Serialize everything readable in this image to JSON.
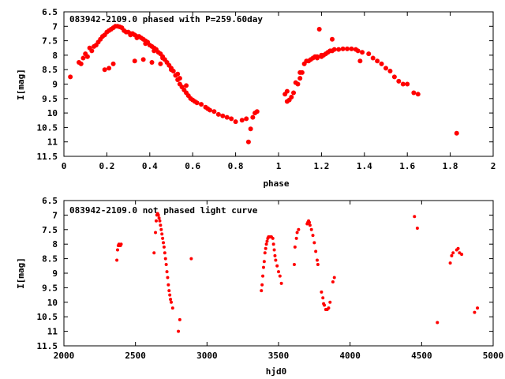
{
  "chart_data": [
    {
      "type": "scatter",
      "title": "083942-2109.0 phased with P=259.60day",
      "xlabel": "phase",
      "ylabel": "I[mag]",
      "xlim": [
        0,
        2
      ],
      "ylim": [
        6.5,
        11.5
      ],
      "y_inverted": true,
      "xticks": [
        "0",
        "0.2",
        "0.4",
        "0.6",
        "0.8",
        "1",
        "1.2",
        "1.4",
        "1.6",
        "1.8",
        "2"
      ],
      "yticks": [
        "6.5",
        "7",
        "7.5",
        "8",
        "8.5",
        "9",
        "9.5",
        "10",
        "10.5",
        "11",
        "11.5"
      ],
      "grid": false,
      "marker_color": "#ff0000",
      "series": [
        {
          "points": [
            [
              0.03,
              8.75
            ],
            [
              0.07,
              8.25
            ],
            [
              0.08,
              8.3
            ],
            [
              0.09,
              8.1
            ],
            [
              0.1,
              7.95
            ],
            [
              0.11,
              8.05
            ],
            [
              0.12,
              7.75
            ],
            [
              0.13,
              7.85
            ],
            [
              0.14,
              7.7
            ],
            [
              0.15,
              7.65
            ],
            [
              0.16,
              7.55
            ],
            [
              0.17,
              7.45
            ],
            [
              0.18,
              7.35
            ],
            [
              0.19,
              7.3
            ],
            [
              0.2,
              7.2
            ],
            [
              0.21,
              7.15
            ],
            [
              0.22,
              7.1
            ],
            [
              0.23,
              7.05
            ],
            [
              0.24,
              7.0
            ],
            [
              0.25,
              7.0
            ],
            [
              0.26,
              7.02
            ],
            [
              0.27,
              7.05
            ],
            [
              0.28,
              7.15
            ],
            [
              0.29,
              7.2
            ],
            [
              0.3,
              7.2
            ],
            [
              0.31,
              7.25
            ],
            [
              0.32,
              7.25
            ],
            [
              0.33,
              7.3
            ],
            [
              0.34,
              7.35
            ],
            [
              0.35,
              7.35
            ],
            [
              0.36,
              7.4
            ],
            [
              0.37,
              7.45
            ],
            [
              0.38,
              7.5
            ],
            [
              0.39,
              7.55
            ],
            [
              0.4,
              7.65
            ],
            [
              0.41,
              7.7
            ],
            [
              0.42,
              7.75
            ],
            [
              0.43,
              7.8
            ],
            [
              0.44,
              7.9
            ],
            [
              0.45,
              7.95
            ],
            [
              0.46,
              8.05
            ],
            [
              0.47,
              8.15
            ],
            [
              0.48,
              8.25
            ],
            [
              0.49,
              8.35
            ],
            [
              0.5,
              8.45
            ],
            [
              0.51,
              8.55
            ],
            [
              0.52,
              8.7
            ],
            [
              0.53,
              8.85
            ],
            [
              0.54,
              9.0
            ],
            [
              0.55,
              9.1
            ],
            [
              0.56,
              9.2
            ],
            [
              0.57,
              9.3
            ],
            [
              0.58,
              9.4
            ],
            [
              0.59,
              9.5
            ],
            [
              0.6,
              9.55
            ],
            [
              0.62,
              9.65
            ],
            [
              0.64,
              9.7
            ],
            [
              0.66,
              9.8
            ],
            [
              0.68,
              9.9
            ],
            [
              0.7,
              9.95
            ],
            [
              0.72,
              10.05
            ],
            [
              0.74,
              10.1
            ],
            [
              0.76,
              10.15
            ],
            [
              0.78,
              10.2
            ],
            [
              0.8,
              10.3
            ],
            [
              0.83,
              10.25
            ],
            [
              0.85,
              10.2
            ],
            [
              0.86,
              11.0
            ],
            [
              0.87,
              10.55
            ],
            [
              0.88,
              10.15
            ],
            [
              0.89,
              10.0
            ],
            [
              0.9,
              9.95
            ],
            [
              0.19,
              8.5
            ],
            [
              0.21,
              8.45
            ],
            [
              0.23,
              8.3
            ],
            [
              0.33,
              8.2
            ],
            [
              0.37,
              8.15
            ],
            [
              0.41,
              8.25
            ],
            [
              0.45,
              8.3
            ],
            [
              0.53,
              8.65
            ],
            [
              0.31,
              7.3
            ],
            [
              0.34,
              7.4
            ],
            [
              0.38,
              7.6
            ],
            [
              0.42,
              7.85
            ],
            [
              0.46,
              8.1
            ],
            [
              0.5,
              8.5
            ],
            [
              0.54,
              8.8
            ],
            [
              0.57,
              9.05
            ],
            [
              0.61,
              9.6
            ],
            [
              0.67,
              9.85
            ],
            [
              1.03,
              9.35
            ],
            [
              1.04,
              9.25
            ],
            [
              1.04,
              9.6
            ],
            [
              1.05,
              9.55
            ],
            [
              1.06,
              9.45
            ],
            [
              1.07,
              9.3
            ],
            [
              1.08,
              8.95
            ],
            [
              1.09,
              9.0
            ],
            [
              1.1,
              8.8
            ],
            [
              1.1,
              8.6
            ],
            [
              1.11,
              8.6
            ],
            [
              1.12,
              8.3
            ],
            [
              1.13,
              8.2
            ],
            [
              1.14,
              8.2
            ],
            [
              1.15,
              8.15
            ],
            [
              1.16,
              8.1
            ],
            [
              1.17,
              8.05
            ],
            [
              1.18,
              8.05
            ],
            [
              1.19,
              7.1
            ],
            [
              1.2,
              8.0
            ],
            [
              1.21,
              8.0
            ],
            [
              1.22,
              7.95
            ],
            [
              1.23,
              7.9
            ],
            [
              1.24,
              7.85
            ],
            [
              1.25,
              7.85
            ],
            [
              1.25,
              7.45
            ],
            [
              1.26,
              7.8
            ],
            [
              1.28,
              7.8
            ],
            [
              1.3,
              7.78
            ],
            [
              1.32,
              7.78
            ],
            [
              1.34,
              7.78
            ],
            [
              1.36,
              7.8
            ],
            [
              1.37,
              7.85
            ],
            [
              1.38,
              8.2
            ],
            [
              1.39,
              7.9
            ],
            [
              1.42,
              7.95
            ],
            [
              1.44,
              8.1
            ],
            [
              1.46,
              8.2
            ],
            [
              1.48,
              8.3
            ],
            [
              1.5,
              8.45
            ],
            [
              1.52,
              8.55
            ],
            [
              1.54,
              8.75
            ],
            [
              1.56,
              8.9
            ],
            [
              1.58,
              9.0
            ],
            [
              1.6,
              9.0
            ],
            [
              1.63,
              9.3
            ],
            [
              1.65,
              9.35
            ],
            [
              1.83,
              10.7
            ],
            [
              1.18,
              8.1
            ],
            [
              1.2,
              8.05
            ]
          ]
        }
      ]
    },
    {
      "type": "scatter",
      "title": "083942-2109.0 not phased light curve",
      "xlabel": "hjd0",
      "ylabel": "I[mag]",
      "xlim": [
        2000,
        5000
      ],
      "ylim": [
        6.5,
        11.5
      ],
      "y_inverted": true,
      "xticks": [
        "2000",
        "2500",
        "3000",
        "3500",
        "4000",
        "4500",
        "5000"
      ],
      "yticks": [
        "6.5",
        "7",
        "7.5",
        "8",
        "8.5",
        "9",
        "9.5",
        "10",
        "10.5",
        "11",
        "11.5"
      ],
      "grid": false,
      "marker_color": "#ff0000",
      "series": [
        {
          "points": [
            [
              2370,
              8.55
            ],
            [
              2375,
              8.2
            ],
            [
              2380,
              8.05
            ],
            [
              2385,
              8.0
            ],
            [
              2390,
              8.05
            ],
            [
              2395,
              8.05
            ],
            [
              2400,
              8.0
            ],
            [
              2630,
              8.3
            ],
            [
              2640,
              7.6
            ],
            [
              2645,
              7.2
            ],
            [
              2650,
              7.0
            ],
            [
              2655,
              6.95
            ],
            [
              2660,
              7.0
            ],
            [
              2665,
              7.1
            ],
            [
              2670,
              7.2
            ],
            [
              2675,
              7.35
            ],
            [
              2680,
              7.5
            ],
            [
              2685,
              7.65
            ],
            [
              2690,
              7.8
            ],
            [
              2695,
              7.95
            ],
            [
              2700,
              8.1
            ],
            [
              2705,
              8.3
            ],
            [
              2710,
              8.5
            ],
            [
              2715,
              8.7
            ],
            [
              2720,
              8.95
            ],
            [
              2725,
              9.15
            ],
            [
              2730,
              9.4
            ],
            [
              2735,
              9.6
            ],
            [
              2740,
              9.75
            ],
            [
              2745,
              9.9
            ],
            [
              2750,
              10.0
            ],
            [
              2760,
              10.2
            ],
            [
              2800,
              11.0
            ],
            [
              2810,
              10.6
            ],
            [
              2890,
              8.5
            ],
            [
              3380,
              9.6
            ],
            [
              3385,
              9.4
            ],
            [
              3390,
              9.1
            ],
            [
              3395,
              8.8
            ],
            [
              3400,
              8.6
            ],
            [
              3405,
              8.3
            ],
            [
              3410,
              8.15
            ],
            [
              3415,
              8.0
            ],
            [
              3420,
              7.9
            ],
            [
              3425,
              7.8
            ],
            [
              3430,
              7.75
            ],
            [
              3440,
              7.75
            ],
            [
              3450,
              7.75
            ],
            [
              3460,
              7.8
            ],
            [
              3465,
              8.0
            ],
            [
              3470,
              8.2
            ],
            [
              3475,
              8.4
            ],
            [
              3480,
              8.55
            ],
            [
              3490,
              8.75
            ],
            [
              3500,
              8.95
            ],
            [
              3510,
              9.1
            ],
            [
              3520,
              9.35
            ],
            [
              3610,
              8.7
            ],
            [
              3615,
              8.1
            ],
            [
              3625,
              7.8
            ],
            [
              3630,
              7.6
            ],
            [
              3640,
              7.5
            ],
            [
              3700,
              7.3
            ],
            [
              3705,
              7.25
            ],
            [
              3710,
              7.2
            ],
            [
              3715,
              7.25
            ],
            [
              3720,
              7.35
            ],
            [
              3730,
              7.5
            ],
            [
              3740,
              7.7
            ],
            [
              3750,
              7.95
            ],
            [
              3760,
              8.25
            ],
            [
              3770,
              8.55
            ],
            [
              3775,
              8.7
            ],
            [
              3800,
              9.65
            ],
            [
              3810,
              9.85
            ],
            [
              3815,
              10.05
            ],
            [
              3820,
              10.1
            ],
            [
              3830,
              10.25
            ],
            [
              3840,
              10.25
            ],
            [
              3850,
              10.2
            ],
            [
              3860,
              10.0
            ],
            [
              3880,
              9.3
            ],
            [
              3890,
              9.15
            ],
            [
              4450,
              7.05
            ],
            [
              4470,
              7.45
            ],
            [
              4610,
              10.7
            ],
            [
              4700,
              8.65
            ],
            [
              4710,
              8.4
            ],
            [
              4720,
              8.3
            ],
            [
              4745,
              8.2
            ],
            [
              4755,
              8.15
            ],
            [
              4765,
              8.3
            ],
            [
              4780,
              8.35
            ],
            [
              4870,
              10.35
            ],
            [
              4890,
              10.2
            ]
          ]
        }
      ]
    }
  ]
}
